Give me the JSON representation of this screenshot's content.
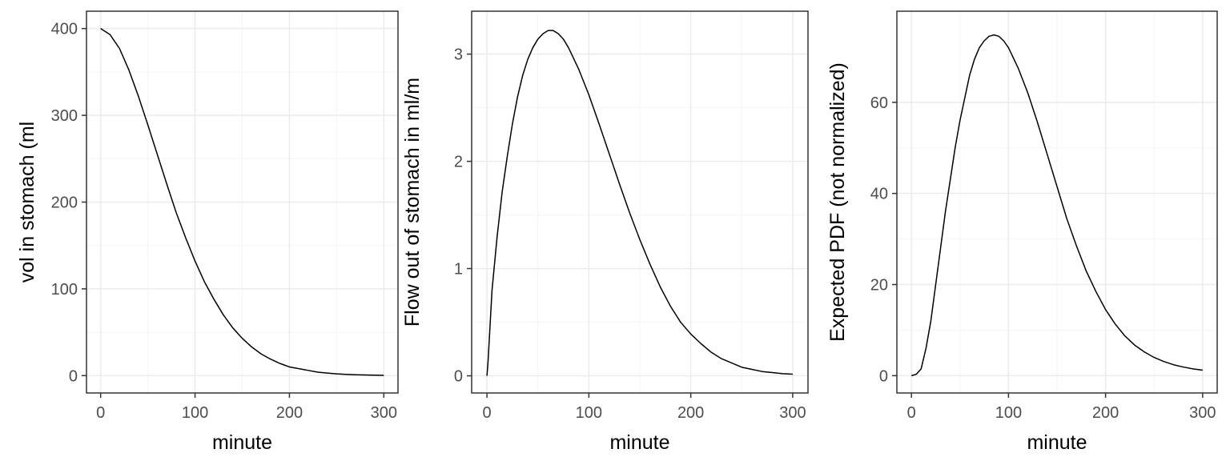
{
  "colors": {
    "background": "#ffffff",
    "panel_border": "#333333",
    "grid_major": "#ebebeb",
    "grid_minor": "#f5f5f5",
    "line": "#000000",
    "tick_text": "#4d4d4d"
  },
  "chart_data": [
    {
      "type": "line",
      "title": "",
      "xlabel": "minute",
      "ylabel": "vol in stomach (ml",
      "xlim": [
        -15,
        315
      ],
      "ylim": [
        -20,
        420
      ],
      "xticks": [
        0,
        100,
        200,
        300
      ],
      "yticks": [
        0,
        100,
        200,
        300,
        400
      ],
      "grid": true,
      "series": [
        {
          "x": [
            0,
            10,
            20,
            30,
            40,
            50,
            60,
            70,
            80,
            90,
            100,
            110,
            120,
            130,
            140,
            150,
            160,
            170,
            180,
            190,
            200,
            210,
            220,
            230,
            240,
            250,
            260,
            270,
            280,
            290,
            300
          ],
          "y": [
            400,
            393,
            377,
            352,
            322,
            289,
            255,
            221,
            188,
            159,
            132,
            108,
            88,
            70,
            55,
            43,
            33,
            25,
            19,
            14,
            10,
            8,
            6,
            4,
            3,
            2,
            1.5,
            1,
            0.7,
            0.5,
            0.3
          ]
        }
      ]
    },
    {
      "type": "line",
      "title": "",
      "xlabel": "minute",
      "ylabel": "Flow out of stomach in ml/m",
      "xlim": [
        -15,
        315
      ],
      "ylim": [
        -0.16,
        3.4
      ],
      "xticks": [
        0,
        100,
        200,
        300
      ],
      "yticks": [
        0,
        1,
        2,
        3
      ],
      "grid": true,
      "series": [
        {
          "x": [
            0,
            1,
            5,
            10,
            15,
            20,
            25,
            30,
            35,
            40,
            45,
            50,
            55,
            60,
            65,
            70,
            75,
            80,
            90,
            100,
            110,
            120,
            130,
            140,
            150,
            160,
            170,
            180,
            190,
            200,
            210,
            220,
            230,
            240,
            250,
            260,
            270,
            280,
            290,
            300
          ],
          "y": [
            0,
            0.12,
            0.8,
            1.3,
            1.72,
            2.05,
            2.35,
            2.6,
            2.8,
            2.95,
            3.06,
            3.14,
            3.19,
            3.22,
            3.22,
            3.19,
            3.14,
            3.06,
            2.86,
            2.62,
            2.35,
            2.07,
            1.79,
            1.52,
            1.27,
            1.04,
            0.83,
            0.65,
            0.5,
            0.39,
            0.3,
            0.22,
            0.16,
            0.12,
            0.08,
            0.06,
            0.04,
            0.03,
            0.02,
            0.015
          ]
        }
      ]
    },
    {
      "type": "line",
      "title": "",
      "xlabel": "minute",
      "ylabel": "Expected PDF (not normalized)",
      "xlim": [
        -15,
        315
      ],
      "ylim": [
        -3.8,
        80
      ],
      "xticks": [
        0,
        100,
        200,
        300
      ],
      "yticks": [
        0,
        20,
        40,
        60
      ],
      "grid": true,
      "series": [
        {
          "x": [
            0,
            5,
            10,
            15,
            20,
            25,
            30,
            35,
            40,
            45,
            50,
            55,
            60,
            65,
            70,
            75,
            80,
            85,
            90,
            95,
            100,
            110,
            120,
            130,
            140,
            150,
            160,
            170,
            180,
            190,
            200,
            210,
            220,
            230,
            240,
            250,
            260,
            270,
            280,
            290,
            300
          ],
          "y": [
            0,
            0.3,
            1.5,
            6,
            12,
            20,
            28,
            36,
            43,
            50,
            56,
            61,
            66,
            69.5,
            72,
            73.5,
            74.5,
            74.8,
            74.5,
            73.5,
            72,
            67.5,
            62,
            55.5,
            48.5,
            41.5,
            34.5,
            28.5,
            23,
            18.5,
            14.5,
            11.3,
            8.7,
            6.7,
            5.2,
            4,
            3.1,
            2.4,
            1.9,
            1.5,
            1.2
          ]
        }
      ]
    }
  ]
}
